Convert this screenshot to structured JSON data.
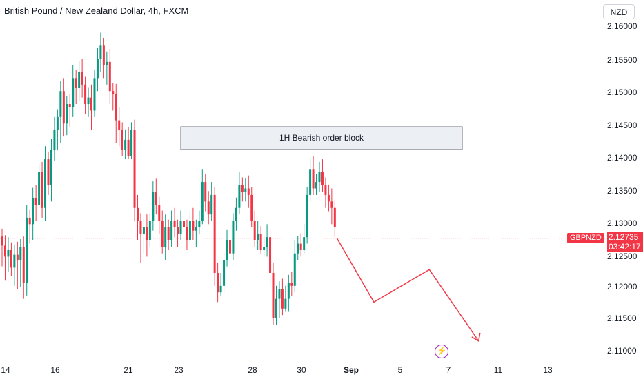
{
  "header": {
    "title": "British Pound / New Zealand Dollar, 4h, FXCM"
  },
  "currency_button": "NZD",
  "annotation": {
    "label": "1H Bearish order block",
    "price_top": 2.1445,
    "price_bottom": 2.141
  },
  "last_price": {
    "symbol": "GBPNZD",
    "price": "2.12735",
    "countdown": "03:42:17",
    "value": 2.12735
  },
  "event_icon": "lightning-bolt-icon",
  "colors": {
    "up": "#089981",
    "down": "#f23645",
    "projection": "#f23645",
    "event": "#9c27b0"
  },
  "chart_data": {
    "type": "candlestick",
    "y_ticks": [
      "2.16000",
      "2.15500",
      "2.15000",
      "2.14500",
      "2.14000",
      "2.13500",
      "2.13000",
      "2.12500",
      "2.12000",
      "2.11500",
      "2.11000"
    ],
    "ylim": [
      2.11,
      2.16
    ],
    "x_ticks": [
      "14",
      "16",
      "21",
      "23",
      "28",
      "30",
      "Sep",
      "5",
      "7",
      "11",
      "13"
    ],
    "candles": [
      [
        2.1276,
        2.1262,
        2.123
      ],
      [
        2.1262,
        2.1245,
        2.1208
      ],
      [
        2.1245,
        2.1255,
        2.1222
      ],
      [
        2.1255,
        2.1228,
        2.1215
      ],
      [
        2.1228,
        2.1248,
        2.12
      ],
      [
        2.1248,
        2.124,
        2.1195
      ],
      [
        2.124,
        2.126,
        2.1198
      ],
      [
        2.126,
        2.1205,
        2.118
      ],
      [
        2.1205,
        2.1305,
        2.1185
      ],
      [
        2.1305,
        2.1295,
        2.1265
      ],
      [
        2.1295,
        2.1335,
        2.127
      ],
      [
        2.1335,
        2.1325,
        2.13
      ],
      [
        2.1325,
        2.1375,
        2.132
      ],
      [
        2.1375,
        2.132,
        2.1305
      ],
      [
        2.132,
        2.1395,
        2.13
      ],
      [
        2.1395,
        2.1355,
        2.134
      ],
      [
        2.1355,
        2.141,
        2.133
      ],
      [
        2.141,
        2.144,
        2.1392
      ],
      [
        2.144,
        2.146,
        2.141
      ],
      [
        2.146,
        2.15,
        2.142
      ],
      [
        2.15,
        2.145,
        2.143
      ],
      [
        2.145,
        2.148,
        2.1432
      ],
      [
        2.148,
        2.1475,
        2.1445
      ],
      [
        2.1475,
        2.152,
        2.146
      ],
      [
        2.152,
        2.1505,
        2.148
      ],
      [
        2.1505,
        2.153,
        2.1485
      ],
      [
        2.153,
        2.151,
        2.149
      ],
      [
        2.151,
        2.148,
        2.1465
      ],
      [
        2.148,
        2.149,
        2.146
      ],
      [
        2.149,
        2.147,
        2.144
      ],
      [
        2.147,
        2.152,
        2.146
      ],
      [
        2.152,
        2.155,
        2.15
      ],
      [
        2.155,
        2.157,
        2.153
      ],
      [
        2.157,
        2.154,
        2.152
      ],
      [
        2.154,
        2.1545,
        2.151
      ],
      [
        2.1545,
        2.15,
        2.148
      ],
      [
        2.15,
        2.1495,
        2.147
      ],
      [
        2.1495,
        2.1455,
        2.142
      ],
      [
        2.1455,
        2.144,
        2.1415
      ],
      [
        2.144,
        2.141,
        2.14
      ],
      [
        2.141,
        2.1425,
        2.1395
      ],
      [
        2.1425,
        2.14,
        2.1395
      ],
      [
        2.14,
        2.144,
        2.1395
      ],
      [
        2.144,
        2.132,
        2.13
      ],
      [
        2.132,
        2.13,
        2.127
      ],
      [
        2.13,
        2.128,
        2.1235
      ],
      [
        2.128,
        2.129,
        2.125
      ],
      [
        2.129,
        2.127,
        2.1245
      ],
      [
        2.127,
        2.13,
        2.126
      ],
      [
        2.13,
        2.1345,
        2.1285
      ],
      [
        2.1345,
        2.1325,
        2.131
      ],
      [
        2.1325,
        2.13,
        2.128
      ],
      [
        2.13,
        2.126,
        2.125
      ],
      [
        2.126,
        2.129,
        2.124
      ],
      [
        2.129,
        2.127,
        2.1255
      ],
      [
        2.127,
        2.13,
        2.126
      ],
      [
        2.13,
        2.129,
        2.1275
      ],
      [
        2.129,
        2.128,
        2.126
      ],
      [
        2.128,
        2.13,
        2.127
      ],
      [
        2.13,
        2.129,
        2.127
      ],
      [
        2.129,
        2.127,
        2.1255
      ],
      [
        2.127,
        2.13,
        2.1265
      ],
      [
        2.13,
        2.1285,
        2.127
      ],
      [
        2.1285,
        2.129,
        2.126
      ],
      [
        2.129,
        2.13,
        2.128
      ],
      [
        2.13,
        2.136,
        2.1295
      ],
      [
        2.136,
        2.133,
        2.1315
      ],
      [
        2.133,
        2.131,
        2.1295
      ],
      [
        2.131,
        2.134,
        2.13
      ],
      [
        2.134,
        2.122,
        2.12
      ],
      [
        2.122,
        2.119,
        2.1175
      ],
      [
        2.119,
        2.12,
        2.1185
      ],
      [
        2.12,
        2.124,
        2.119
      ],
      [
        2.124,
        2.127,
        2.123
      ],
      [
        2.127,
        2.125,
        2.123
      ],
      [
        2.125,
        2.13,
        2.124
      ],
      [
        2.13,
        2.132,
        2.1285
      ],
      [
        2.132,
        2.1355,
        2.131
      ],
      [
        2.1355,
        2.1345,
        2.133
      ],
      [
        2.1345,
        2.135,
        2.133
      ],
      [
        2.135,
        2.134,
        2.132
      ],
      [
        2.134,
        2.13,
        2.129
      ],
      [
        2.13,
        2.127,
        2.126
      ],
      [
        2.127,
        2.128,
        2.1255
      ],
      [
        2.128,
        2.1255,
        2.125
      ],
      [
        2.1255,
        2.126,
        2.1245
      ],
      [
        2.126,
        2.1275,
        2.1245
      ],
      [
        2.1275,
        2.122,
        2.12
      ],
      [
        2.122,
        2.115,
        2.114
      ],
      [
        2.115,
        2.118,
        2.114
      ],
      [
        2.118,
        2.1195,
        2.115
      ],
      [
        2.1195,
        2.1165,
        2.1155
      ],
      [
        2.1165,
        2.118,
        2.116
      ],
      [
        2.118,
        2.1205,
        2.116
      ],
      [
        2.1205,
        2.12,
        2.1185
      ],
      [
        2.12,
        2.125,
        2.119
      ],
      [
        2.125,
        2.1265,
        2.124
      ],
      [
        2.1265,
        2.1255,
        2.1245
      ],
      [
        2.1255,
        2.1275,
        2.125
      ],
      [
        2.1275,
        2.134,
        2.1265
      ],
      [
        2.134,
        2.138,
        2.133
      ],
      [
        2.138,
        2.135,
        2.134
      ],
      [
        2.135,
        2.136,
        2.134
      ],
      [
        2.136,
        2.1375,
        2.1345
      ],
      [
        2.1375,
        2.1355,
        2.1345
      ],
      [
        2.1355,
        2.134,
        2.132
      ],
      [
        2.134,
        2.133,
        2.1315
      ],
      [
        2.133,
        2.132,
        2.1295
      ],
      [
        2.132,
        2.129,
        2.1275
      ]
    ],
    "projection": [
      [
        2.12735,
        0
      ],
      [
        2.1175,
        6
      ],
      [
        2.1225,
        15
      ],
      [
        2.1115,
        23
      ]
    ]
  }
}
